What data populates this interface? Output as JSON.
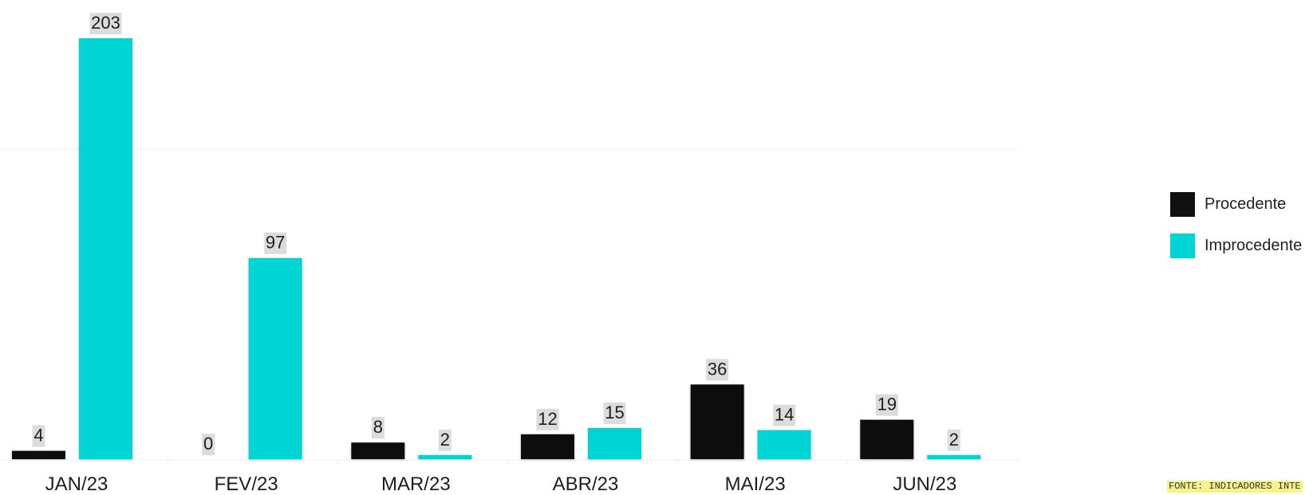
{
  "chart_data": {
    "type": "bar",
    "title": "",
    "xlabel": "",
    "ylabel": "",
    "categories": [
      "JAN/23",
      "FEV/23",
      "MAR/23",
      "ABR/23",
      "MAI/23",
      "JUN/23"
    ],
    "series": [
      {
        "name": "Procedente",
        "color": "#111111",
        "values": [
          4,
          0,
          8,
          12,
          36,
          19
        ]
      },
      {
        "name": "Improcedente",
        "color": "#00d4d4",
        "values": [
          203,
          97,
          2,
          15,
          14,
          2
        ]
      }
    ],
    "ylim": [
      0,
      203
    ],
    "grid": true,
    "legend_position": "right",
    "data_labels": true
  },
  "source": "FONTE: INDICADORES INTE"
}
